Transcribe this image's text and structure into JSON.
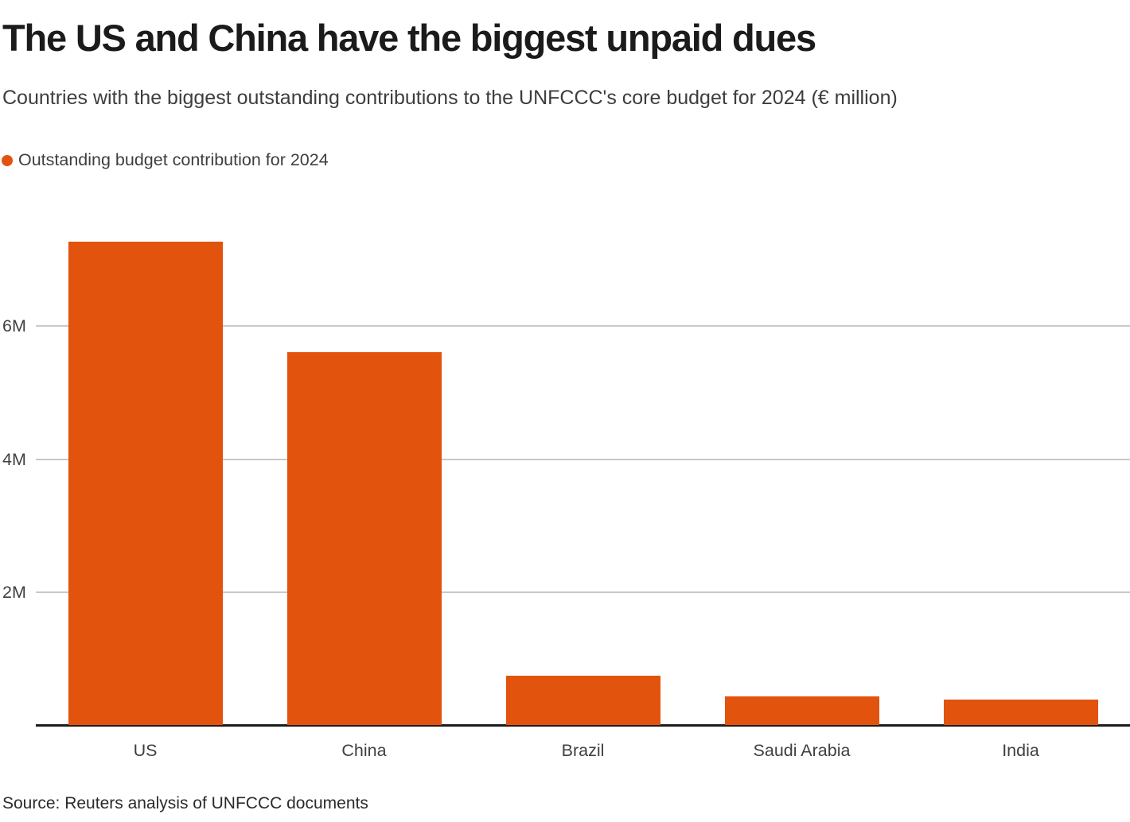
{
  "header": {
    "title": "The US and China have the biggest unpaid dues",
    "subtitle": "Countries with the biggest outstanding contributions to the UNFCCC's core budget for 2024 (€ million)"
  },
  "legend": {
    "label": "Outstanding budget contribution for 2024",
    "swatch_color": "#e2530e"
  },
  "chart_data": {
    "type": "bar",
    "title": "The US and China have the biggest unpaid dues",
    "subtitle": "Countries with the biggest outstanding contributions to the UNFCCC's core budget for 2024 (€ million)",
    "categories": [
      "US",
      "China",
      "Brazil",
      "Saudi Arabia",
      "India"
    ],
    "series": [
      {
        "name": "Outstanding budget contribution for 2024",
        "values": [
          7.27,
          5.61,
          0.74,
          0.43,
          0.38
        ]
      }
    ],
    "unit": "€ million",
    "bar_color": "#e2530e",
    "xlabel": "",
    "ylabel": "",
    "ylim": [
      0,
      7.86
    ],
    "yticks": [
      {
        "value": 2,
        "label": "2M"
      },
      {
        "value": 4,
        "label": "4M"
      },
      {
        "value": 6,
        "label": "6M"
      }
    ],
    "grid": "horizontal",
    "legend_position": "top-left"
  },
  "footer": {
    "source": "Source: Reuters analysis of UNFCCC documents"
  },
  "colors": {
    "accent": "#e2530e",
    "title_text": "#1b1b1b",
    "muted_text": "#3f3f3f",
    "gridline": "#c8c8c8",
    "axis_line": "#1c1c1c"
  }
}
